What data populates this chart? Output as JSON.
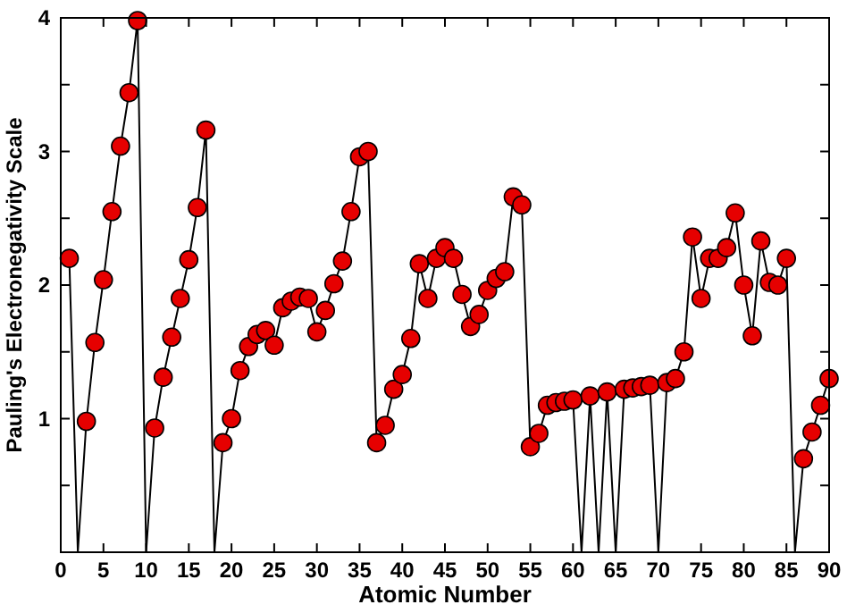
{
  "chart_data": {
    "type": "line",
    "xlabel": "Atomic Number",
    "ylabel": "Pauling's Electronegativity Scale",
    "x": [
      1,
      2,
      3,
      4,
      5,
      6,
      7,
      8,
      9,
      10,
      11,
      12,
      13,
      14,
      15,
      16,
      17,
      18,
      19,
      20,
      21,
      22,
      23,
      24,
      25,
      26,
      27,
      28,
      29,
      30,
      31,
      32,
      33,
      34,
      35,
      36,
      37,
      38,
      39,
      40,
      41,
      42,
      43,
      44,
      45,
      46,
      47,
      48,
      49,
      50,
      51,
      52,
      53,
      54,
      55,
      56,
      57,
      58,
      59,
      60,
      61,
      62,
      63,
      64,
      65,
      66,
      67,
      68,
      69,
      70,
      71,
      72,
      73,
      74,
      75,
      76,
      77,
      78,
      79,
      80,
      81,
      82,
      83,
      84,
      85,
      86,
      87,
      88,
      89,
      90
    ],
    "series": [
      {
        "color": "#000000",
        "marker": "none",
        "values": [
          2.2,
          0,
          0.98,
          1.57,
          2.04,
          2.55,
          3.04,
          3.44,
          3.98,
          0,
          0.93,
          1.31,
          1.61,
          1.9,
          2.19,
          2.58,
          3.16,
          0,
          0.82,
          1.0,
          1.36,
          1.54,
          1.63,
          1.66,
          1.55,
          1.83,
          1.88,
          1.91,
          1.9,
          1.65,
          1.81,
          2.01,
          2.18,
          2.55,
          2.96,
          3.0,
          0.82,
          0.95,
          1.22,
          1.33,
          1.6,
          2.16,
          1.9,
          2.2,
          2.28,
          2.2,
          1.93,
          1.69,
          1.78,
          1.96,
          2.05,
          2.1,
          2.66,
          2.6,
          0.79,
          0.89,
          1.1,
          1.12,
          1.13,
          1.14,
          0,
          1.17,
          0,
          1.2,
          0,
          1.22,
          1.23,
          1.24,
          1.25,
          0,
          1.27,
          1.3,
          1.5,
          2.36,
          1.9,
          2.2,
          2.2,
          2.28,
          2.54,
          2.0,
          1.62,
          2.33,
          2.02,
          2.0,
          2.2,
          0,
          0.7,
          0.9,
          1.1,
          1.3
        ]
      },
      {
        "type": "scatter",
        "color": "#e60000",
        "marker": "circle",
        "values": [
          2.2,
          null,
          0.98,
          1.57,
          2.04,
          2.55,
          3.04,
          3.44,
          3.98,
          null,
          0.93,
          1.31,
          1.61,
          1.9,
          2.19,
          2.58,
          3.16,
          null,
          0.82,
          1.0,
          1.36,
          1.54,
          1.63,
          1.66,
          1.55,
          1.83,
          1.88,
          1.91,
          1.9,
          1.65,
          1.81,
          2.01,
          2.18,
          2.55,
          2.96,
          3.0,
          0.82,
          0.95,
          1.22,
          1.33,
          1.6,
          2.16,
          1.9,
          2.2,
          2.28,
          2.2,
          1.93,
          1.69,
          1.78,
          1.96,
          2.05,
          2.1,
          2.66,
          2.6,
          0.79,
          0.89,
          1.1,
          1.12,
          1.13,
          1.14,
          null,
          1.17,
          null,
          1.2,
          null,
          1.22,
          1.23,
          1.24,
          1.25,
          null,
          1.27,
          1.3,
          1.5,
          2.36,
          1.9,
          2.2,
          2.2,
          2.28,
          2.54,
          2.0,
          1.62,
          2.33,
          2.02,
          2.0,
          2.2,
          null,
          0.7,
          0.9,
          1.1,
          1.3
        ]
      }
    ],
    "xlim": [
      0,
      90
    ],
    "xticks": [
      0,
      5,
      10,
      15,
      20,
      25,
      30,
      35,
      40,
      45,
      50,
      55,
      60,
      65,
      70,
      75,
      80,
      85,
      90
    ],
    "ylim": [
      0,
      4
    ],
    "yticks": [
      {
        "value": 0,
        "label": null
      },
      {
        "value": 0.5,
        "label": null
      },
      1,
      {
        "value": 1.5,
        "label": null
      },
      2,
      {
        "value": 2.5,
        "label": null
      },
      3,
      {
        "value": 3.5,
        "label": null
      },
      4
    ],
    "grid": false
  }
}
